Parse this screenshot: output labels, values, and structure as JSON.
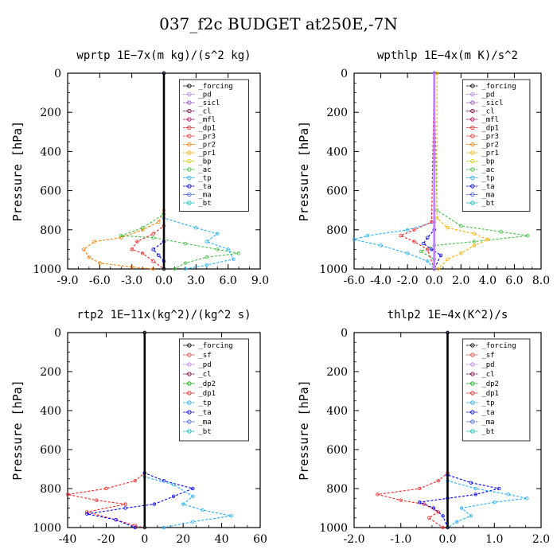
{
  "page_title": "037_f2c  BUDGET at250E,-7N",
  "legend_colors": {
    "_forcing": "#000000",
    "_pd": "#c080ff",
    "_sicl": "#9050c0",
    "_cl": "#800040",
    "_mfl": "#c00060",
    "_dp1": "#ff2020",
    "_pr3": "#ff3030",
    "_pr2": "#ff8000",
    "_pr1": "#ffb000",
    "_bp": "#e0d000",
    "_ac": "#40c040",
    "_tp": "#20b0ff",
    "_ta": "#0000ff",
    "_ma": "#4060ff",
    "_bt": "#00c0c0",
    "_sf": "#ff4040",
    "_dp2": "#00b000"
  },
  "chart_data": [
    {
      "type": "line",
      "title": "wprtp   1E−7x(m kg)/(s^2 kg)",
      "ylabel": "Pressure [hPa]",
      "xlim": [
        -9,
        9
      ],
      "ylim": [
        1000,
        0
      ],
      "xticks": [
        "-9.0",
        "-6.0",
        "-3.0",
        "0.0",
        "3.0",
        "6.0",
        "9.0"
      ],
      "yticks": [
        "0",
        "200",
        "400",
        "600",
        "800",
        "1000"
      ],
      "legend": [
        "_forcing",
        "_pd",
        "_sicl",
        "_cl",
        "_mfl",
        "_dp1",
        "_pr3",
        "_pr2",
        "_pr1",
        "_bp",
        "_ac",
        "_tp",
        "_ta",
        "_ma",
        "_bt"
      ],
      "series": [
        {
          "name": "_pr2",
          "points": [
            [
              0,
              0
            ],
            [
              0,
              700
            ],
            [
              -0.5,
              760
            ],
            [
              -2,
              800
            ],
            [
              -4,
              840
            ],
            [
              -6.5,
              860
            ],
            [
              -7.5,
              900
            ],
            [
              -7,
              940
            ],
            [
              -6,
              970
            ],
            [
              -3,
              990
            ],
            [
              -1,
              1000
            ]
          ]
        },
        {
          "name": "_ac",
          "points": [
            [
              0,
              0
            ],
            [
              0,
              720
            ],
            [
              -2,
              790
            ],
            [
              -4,
              830
            ],
            [
              -1,
              840
            ],
            [
              2,
              870
            ],
            [
              5,
              900
            ],
            [
              7,
              920
            ],
            [
              4,
              940
            ],
            [
              2,
              970
            ],
            [
              1,
              1000
            ]
          ]
        },
        {
          "name": "_tp",
          "points": [
            [
              0,
              0
            ],
            [
              0,
              740
            ],
            [
              3,
              790
            ],
            [
              5,
              820
            ],
            [
              4,
              860
            ],
            [
              6,
              900
            ],
            [
              6.5,
              950
            ],
            [
              4,
              980
            ],
            [
              2,
              1000
            ]
          ]
        },
        {
          "name": "_dp1",
          "points": [
            [
              0,
              0
            ],
            [
              0,
              780
            ],
            [
              -1,
              820
            ],
            [
              -2.5,
              860
            ],
            [
              -3,
              900
            ],
            [
              -2,
              920
            ],
            [
              -1,
              960
            ],
            [
              0,
              1000
            ]
          ]
        },
        {
          "name": "_ta",
          "points": [
            [
              0,
              0
            ],
            [
              0,
              860
            ],
            [
              -1,
              900
            ],
            [
              -0.5,
              930
            ],
            [
              0,
              960
            ],
            [
              0,
              1000
            ]
          ]
        },
        {
          "name": "_forcing",
          "points": [
            [
              0,
              0
            ],
            [
              0,
              1000
            ]
          ]
        }
      ]
    },
    {
      "type": "line",
      "title": "wpthlp   1E−4x(m K)/s^2",
      "ylabel": "Pressure [hPa]",
      "xlim": [
        -6,
        8
      ],
      "ylim": [
        1000,
        0
      ],
      "xticks": [
        "-6.0",
        "-4.0",
        "-2.0",
        "0.0",
        "2.0",
        "4.0",
        "6.0",
        "8.0"
      ],
      "yticks": [
        "0",
        "200",
        "400",
        "600",
        "800",
        "1000"
      ],
      "legend": [
        "_forcing",
        "_pd",
        "_sicl",
        "_cl",
        "_mfl",
        "_dp1",
        "_pr3",
        "_pr2",
        "_pr1",
        "_bp",
        "_ac",
        "_tp",
        "_ta",
        "_ma",
        "_bt"
      ],
      "series": [
        {
          "name": "_ac",
          "points": [
            [
              0,
              0
            ],
            [
              0.2,
              700
            ],
            [
              2,
              780
            ],
            [
              5,
              810
            ],
            [
              7,
              830
            ],
            [
              3,
              860
            ],
            [
              0,
              880
            ],
            [
              -1,
              910
            ],
            [
              0,
              950
            ],
            [
              0,
              1000
            ]
          ]
        },
        {
          "name": "_pr1",
          "points": [
            [
              0.2,
              0
            ],
            [
              0.2,
              740
            ],
            [
              1,
              790
            ],
            [
              3,
              820
            ],
            [
              4,
              850
            ],
            [
              3,
              880
            ],
            [
              2,
              920
            ],
            [
              1,
              950
            ],
            [
              0.3,
              1000
            ]
          ]
        },
        {
          "name": "_tp",
          "points": [
            [
              0,
              0
            ],
            [
              0,
              760
            ],
            [
              -2,
              800
            ],
            [
              -5,
              830
            ],
            [
              -6,
              850
            ],
            [
              -4,
              880
            ],
            [
              -2,
              920
            ],
            [
              -0.5,
              960
            ],
            [
              0,
              1000
            ]
          ]
        },
        {
          "name": "_dp1",
          "points": [
            [
              0,
              0
            ],
            [
              -0.2,
              760
            ],
            [
              -1.5,
              800
            ],
            [
              -2.5,
              830
            ],
            [
              -1.5,
              860
            ],
            [
              -0.5,
              900
            ],
            [
              0,
              1000
            ]
          ]
        },
        {
          "name": "_ta",
          "points": [
            [
              0,
              0
            ],
            [
              0,
              800
            ],
            [
              -0.5,
              840
            ],
            [
              -0.8,
              870
            ],
            [
              -0.2,
              900
            ],
            [
              0.5,
              930
            ],
            [
              0,
              1000
            ]
          ]
        },
        {
          "name": "_pd",
          "points": [
            [
              0,
              0
            ],
            [
              0,
              1000
            ]
          ]
        }
      ]
    },
    {
      "type": "line",
      "title": "rtp2   1E−11x(kg^2)/(kg^2 s)",
      "ylabel": "Pressure [hPa]",
      "xlim": [
        -40,
        60
      ],
      "ylim": [
        1000,
        0
      ],
      "xticks": [
        "-40",
        "-20",
        "0",
        "20",
        "40",
        "60"
      ],
      "yticks": [
        "0",
        "200",
        "400",
        "600",
        "800",
        "1000"
      ],
      "legend": [
        "_forcing",
        "_sf",
        "_pd",
        "_cl",
        "_dp2",
        "_dp1",
        "_tp",
        "_ta",
        "_ma",
        "_bt"
      ],
      "series": [
        {
          "name": "_dp1",
          "points": [
            [
              0,
              0
            ],
            [
              0,
              720
            ],
            [
              -5,
              760
            ],
            [
              -20,
              800
            ],
            [
              -40,
              830
            ],
            [
              -25,
              860
            ],
            [
              -10,
              880
            ],
            [
              -30,
              920
            ],
            [
              -15,
              960
            ],
            [
              -5,
              990
            ],
            [
              0,
              1000
            ]
          ]
        },
        {
          "name": "_ta",
          "points": [
            [
              0,
              0
            ],
            [
              0,
              720
            ],
            [
              10,
              760
            ],
            [
              25,
              800
            ],
            [
              15,
              840
            ],
            [
              5,
              880
            ],
            [
              -10,
              900
            ],
            [
              -30,
              930
            ],
            [
              -15,
              960
            ],
            [
              -5,
              1000
            ]
          ]
        },
        {
          "name": "_tp",
          "points": [
            [
              0,
              0
            ],
            [
              0,
              740
            ],
            [
              15,
              780
            ],
            [
              25,
              840
            ],
            [
              20,
              880
            ],
            [
              30,
              910
            ],
            [
              45,
              940
            ],
            [
              25,
              970
            ],
            [
              10,
              1000
            ]
          ]
        },
        {
          "name": "_forcing",
          "points": [
            [
              0,
              0
            ],
            [
              0,
              1000
            ]
          ]
        }
      ]
    },
    {
      "type": "line",
      "title": "thlp2   1E−4x(K^2)/s",
      "ylabel": "Pressure [hPa]",
      "xlim": [
        -2,
        2
      ],
      "ylim": [
        1000,
        0
      ],
      "xticks": [
        "-2.0",
        "-1.0",
        "0.0",
        "1.0",
        "2.0"
      ],
      "yticks": [
        "0",
        "200",
        "400",
        "600",
        "800",
        "1000"
      ],
      "legend": [
        "_forcing",
        "_sf",
        "_pd",
        "_cl",
        "_dp2",
        "_dp1",
        "_tp",
        "_ta",
        "_ma",
        "_bt"
      ],
      "series": [
        {
          "name": "_dp1",
          "points": [
            [
              0,
              0
            ],
            [
              0,
              720
            ],
            [
              -0.2,
              760
            ],
            [
              -0.6,
              800
            ],
            [
              -1.5,
              830
            ],
            [
              -1,
              860
            ],
            [
              -0.5,
              880
            ],
            [
              -0.2,
              920
            ],
            [
              -0.4,
              950
            ],
            [
              -0.1,
              1000
            ]
          ]
        },
        {
          "name": "_ta",
          "points": [
            [
              0,
              0
            ],
            [
              0,
              730
            ],
            [
              0.5,
              770
            ],
            [
              1.1,
              800
            ],
            [
              0.6,
              830
            ],
            [
              0,
              850
            ],
            [
              -0.6,
              870
            ],
            [
              -0.3,
              900
            ],
            [
              -0.1,
              940
            ],
            [
              0,
              1000
            ]
          ]
        },
        {
          "name": "_tp",
          "points": [
            [
              0,
              0
            ],
            [
              0,
              760
            ],
            [
              0.6,
              800
            ],
            [
              1.3,
              830
            ],
            [
              1.7,
              850
            ],
            [
              1,
              870
            ],
            [
              0.3,
              900
            ],
            [
              0.5,
              940
            ],
            [
              0.2,
              970
            ],
            [
              0,
              1000
            ]
          ]
        },
        {
          "name": "_forcing",
          "points": [
            [
              0,
              0
            ],
            [
              0,
              1000
            ]
          ]
        }
      ]
    }
  ]
}
